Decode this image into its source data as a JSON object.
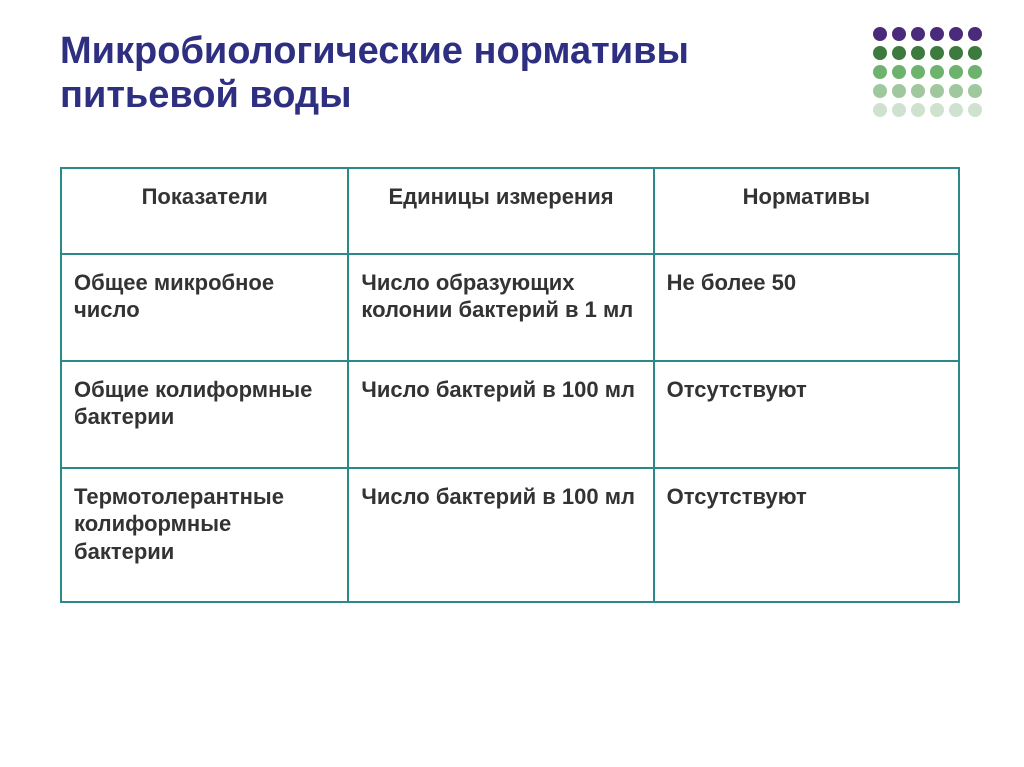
{
  "title_color": "#2f2f82",
  "title": "Микробиологические нормативы питьевой воды",
  "dot_grid": {
    "rows": 5,
    "cols": 6,
    "colors": [
      [
        "#4a2a7a",
        "#4a2a7a",
        "#4a2a7a",
        "#4a2a7a",
        "#4a2a7a",
        "#4a2a7a"
      ],
      [
        "#3d7a3d",
        "#3d7a3d",
        "#3d7a3d",
        "#3d7a3d",
        "#3d7a3d",
        "#3d7a3d"
      ],
      [
        "#6db36d",
        "#6db36d",
        "#6db36d",
        "#6db36d",
        "#6db36d",
        "#6db36d"
      ],
      [
        "#9fc89f",
        "#9fc89f",
        "#9fc89f",
        "#9fc89f",
        "#9fc89f",
        "#9fc89f"
      ],
      [
        "#cfe2cf",
        "#cfe2cf",
        "#cfe2cf",
        "#cfe2cf",
        "#cfe2cf",
        "#cfe2cf"
      ]
    ]
  },
  "table": {
    "border_color": "#2a8a8a",
    "text_color": "#333333",
    "headers": [
      "Показатели",
      "Единицы измерения",
      "Нормативы"
    ],
    "rows": [
      [
        "Общее микробное число",
        "Число образующих колонии бактерий в 1 мл",
        "Не более 50"
      ],
      [
        "Общие колиформные бактерии",
        "Число бактерий в 100 мл",
        "Отсутствуют"
      ],
      [
        "Термотолерантные колиформные бактерии",
        "Число бактерий в 100 мл",
        "Отсутствуют"
      ]
    ]
  }
}
